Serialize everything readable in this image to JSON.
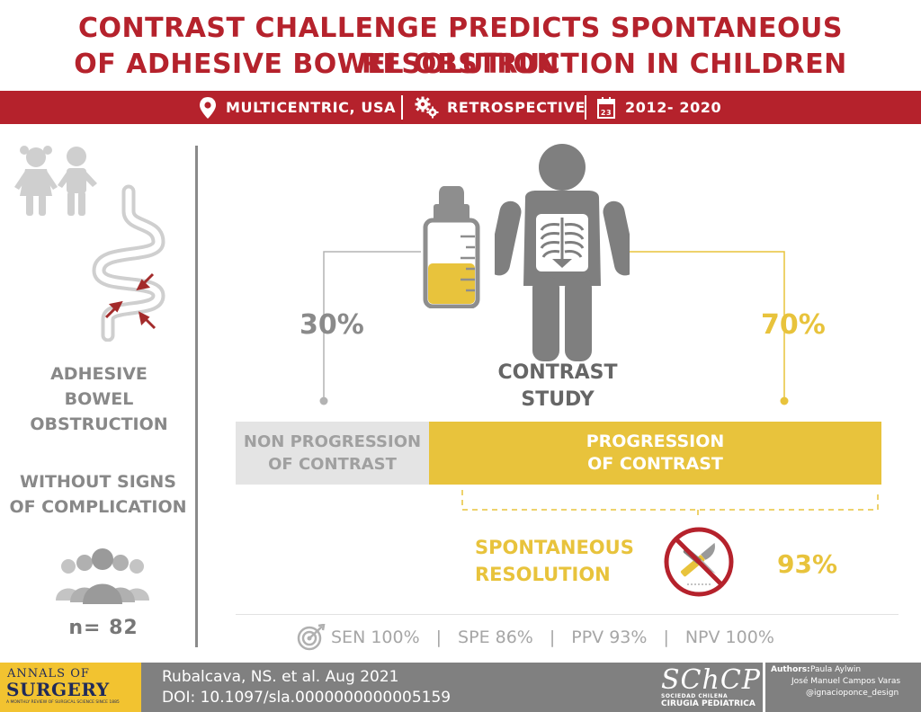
{
  "title": {
    "line1": "CONTRAST CHALLENGE PREDICTS SPONTANEOUS RESOLUTION",
    "line2": "OF ADHESIVE BOWEL OBSTRUCTION IN CHILDREN"
  },
  "info_bar": {
    "location": "MULTICENTRIC, USA",
    "design": "RETROSPECTIVE",
    "calendar_day": "23",
    "period": "2012- 2020"
  },
  "left_panel": {
    "condition_line1": "ADHESIVE",
    "condition_line2": "BOWEL",
    "condition_line3": "OBSTRUCTION",
    "qualifier_line1": "WITHOUT SIGNS",
    "qualifier_line2": "OF COMPLICATION",
    "n_label": "n= 82"
  },
  "main": {
    "non_progression_pct": "30%",
    "progression_pct": "70%",
    "study_line1": "CONTRAST",
    "study_line2": "STUDY",
    "non_progression_line1": "NON PROGRESSION",
    "non_progression_line2": "OF CONTRAST",
    "progression_line1": "PROGRESSION",
    "progression_line2": "OF CONTRAST",
    "progression_fraction": 0.7,
    "resolution_line1": "SPONTANEOUS",
    "resolution_line2": "RESOLUTION",
    "resolution_pct": "93%",
    "bottle_fill_fraction": 0.5
  },
  "metrics": {
    "sen": "SEN 100%",
    "spe": "SPE 86%",
    "ppv": "PPV 93%",
    "npv": "NPV 100%",
    "sep": "|"
  },
  "footer": {
    "journal_line1": "ANNALS OF",
    "journal_line2": "SURGERY",
    "journal_tagline": "A MONTHLY REVIEW OF SURGICAL SCIENCE SINCE 1885",
    "citation": "Rubalcava, NS. et al. Aug 2021",
    "doi": "DOI: 10.1097/sla.0000000000005159",
    "society_logo": "SChCP",
    "society_line1": "SOCIEDAD CHILENA",
    "society_line2": "CIRUGIA PEDIATRICA",
    "authors_label": "Authors:",
    "author1": "Paula Aylwin",
    "author2": "José Manuel Campos Varas",
    "author3": "@ignacioponce_design"
  },
  "colors": {
    "brand_red": "#b5222c",
    "accent_yellow": "#e8c33c",
    "neutral_gray": "#808080",
    "light_gray": "#e4e4e4",
    "journal_yellow": "#f2c330"
  }
}
